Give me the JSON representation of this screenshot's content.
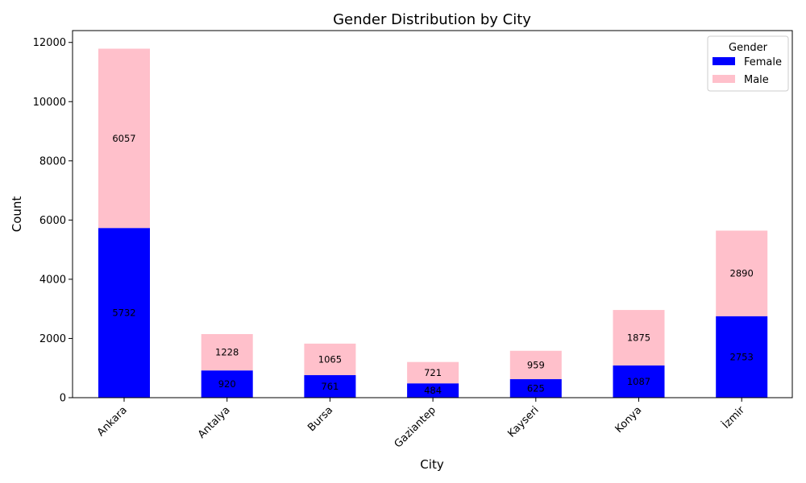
{
  "chart_data": {
    "type": "bar",
    "stacked": true,
    "title": "Gender Distribution by City",
    "xlabel": "City",
    "ylabel": "Count",
    "categories": [
      "Ankara",
      "Antalya",
      "Bursa",
      "Gaziantep",
      "Kayseri",
      "Konya",
      "İzmir"
    ],
    "series": [
      {
        "name": "Female",
        "color": "#0000ff",
        "values": [
          5732,
          920,
          761,
          484,
          625,
          1087,
          2753
        ]
      },
      {
        "name": "Male",
        "color": "#ffc0cb",
        "values": [
          6057,
          1228,
          1065,
          721,
          959,
          1875,
          2890
        ]
      }
    ],
    "ylim": [
      0,
      12400
    ],
    "yticks": [
      0,
      2000,
      4000,
      6000,
      8000,
      10000,
      12000
    ],
    "legend": {
      "title": "Gender",
      "placement": "top-right"
    },
    "grid": false
  }
}
